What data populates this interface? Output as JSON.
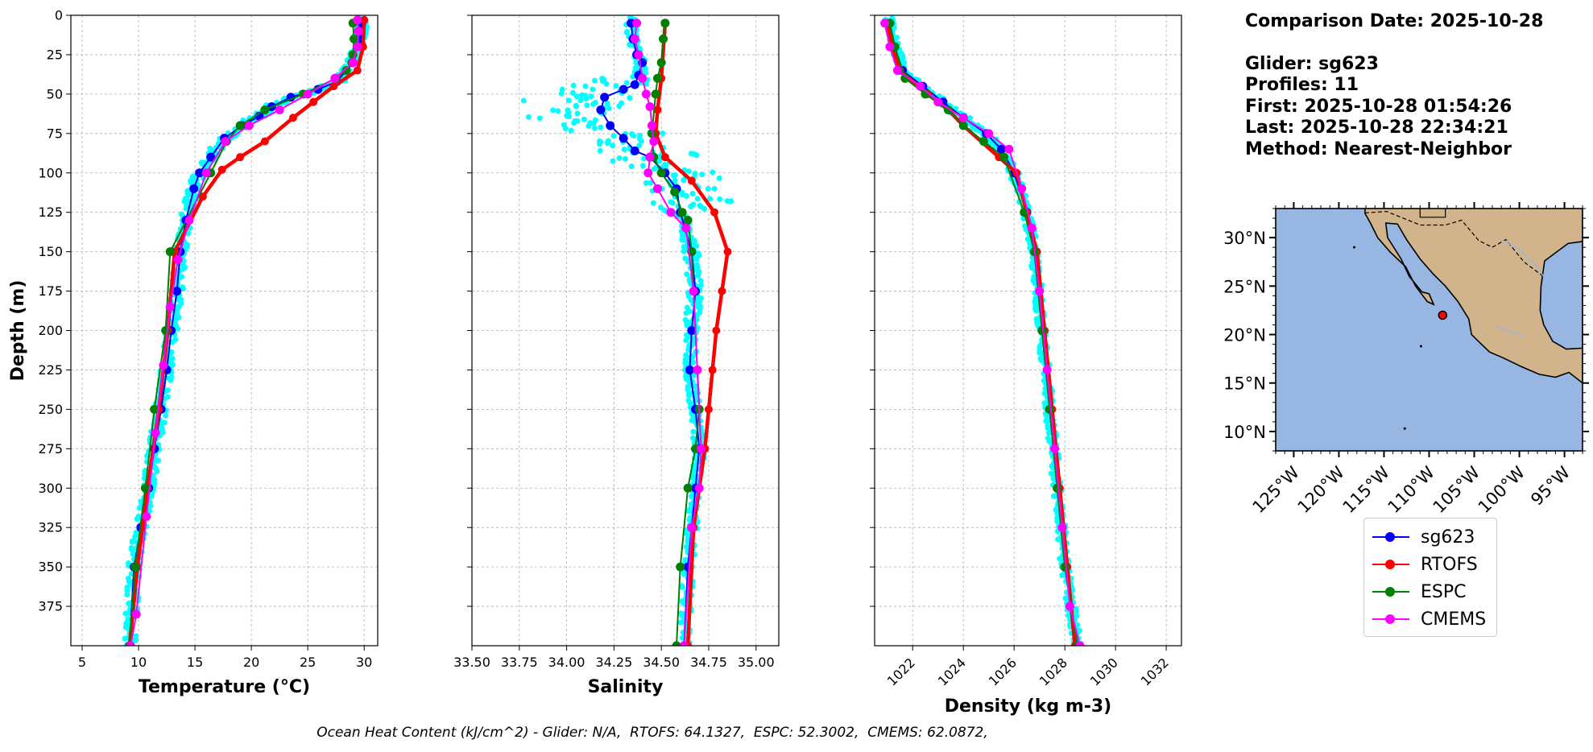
{
  "info": {
    "date_line": "Comparison Date: 2025-10-28",
    "glider_line": "Glider: sg623",
    "profiles_line": "Profiles: 11",
    "first_line": "First: 2025-10-28 01:54:26",
    "last_line": "Last: 2025-10-28 22:34:21",
    "method_line": "Method: Nearest-Neighbor"
  },
  "footer": "Ocean Heat Content (kJ/cm^2) - Glider: N/A,  RTOFS: 64.1327,  ESPC: 52.3002,  CMEMS: 62.0872,",
  "legend": [
    {
      "name": "sg623",
      "color": "#0000ff"
    },
    {
      "name": "RTOFS",
      "color": "#ff0000"
    },
    {
      "name": "ESPC",
      "color": "#008000"
    },
    {
      "name": "CMEMS",
      "color": "#ff00ff"
    }
  ],
  "chart_data": [
    {
      "type": "line",
      "xlabel": "Temperature (°C)",
      "ylabel": "Depth (m)",
      "xlim": [
        4,
        31.2
      ],
      "ylim": [
        400,
        0
      ],
      "xticks": [
        5,
        10,
        15,
        20,
        25,
        30
      ],
      "yticks": [
        0,
        25,
        50,
        75,
        100,
        125,
        150,
        175,
        200,
        225,
        250,
        275,
        300,
        325,
        350,
        375
      ],
      "grid": true,
      "series": [
        {
          "name": "sg623",
          "color": "#0000ff",
          "x": [
            29.8,
            29.6,
            29.0,
            27.6,
            25.9,
            23.5,
            21.8,
            20.7,
            19.2,
            17.6,
            16.4,
            15.4,
            14.9,
            14.2,
            13.7,
            13.4,
            12.9,
            12.5,
            12.0,
            11.4,
            10.9,
            10.2,
            9.6,
            9.2
          ],
          "y": [
            5,
            15,
            30,
            42,
            47,
            52,
            58,
            64,
            70,
            78,
            90,
            100,
            110,
            130,
            150,
            175,
            200,
            225,
            250,
            275,
            300,
            325,
            350,
            400
          ]
        },
        {
          "name": "RTOFS",
          "color": "#ff0000",
          "x": [
            30.0,
            29.9,
            29.4,
            27.3,
            25.5,
            23.7,
            21.2,
            19.0,
            17.4,
            15.7,
            13.2,
            12.6,
            11.8,
            10.8,
            9.9,
            9.2
          ],
          "y": [
            3,
            20,
            35,
            45,
            55,
            65,
            80,
            90,
            98,
            115,
            150,
            200,
            250,
            300,
            350,
            400
          ]
        },
        {
          "name": "ESPC",
          "color": "#008000",
          "x": [
            29.0,
            29.1,
            29.0,
            28.9,
            28.4,
            27.5,
            24.6,
            21.2,
            19.0,
            17.8,
            16.4,
            12.8,
            12.4,
            11.4,
            10.6,
            9.7,
            9.2
          ],
          "y": [
            5,
            15,
            25,
            30,
            35,
            40,
            50,
            60,
            70,
            80,
            100,
            150,
            200,
            250,
            300,
            350,
            400
          ]
        },
        {
          "name": "CMEMS",
          "color": "#ff00ff",
          "x": [
            29.4,
            29.5,
            29.4,
            29.0,
            27.4,
            25.0,
            22.5,
            19.8,
            17.7,
            16.0,
            14.5,
            13.5,
            12.8,
            12.2,
            11.5,
            10.7,
            9.8,
            9.3
          ],
          "y": [
            3,
            10,
            20,
            30,
            40,
            50,
            60,
            70,
            80,
            100,
            130,
            155,
            185,
            222,
            265,
            318,
            380,
            400
          ]
        }
      ]
    },
    {
      "type": "line",
      "xlabel": "Salinity",
      "xlim": [
        33.5,
        35.12
      ],
      "ylim": [
        400,
        0
      ],
      "xticks": [
        "33.50",
        "33.75",
        "34.00",
        "34.25",
        "34.50",
        "34.75",
        "35.00"
      ],
      "grid": true,
      "series": [
        {
          "name": "sg623",
          "color": "#0000ff",
          "x": [
            34.34,
            34.35,
            34.37,
            34.4,
            34.38,
            34.36,
            34.3,
            34.2,
            34.18,
            34.23,
            34.3,
            34.36,
            34.44,
            34.52,
            34.58,
            34.6,
            34.66,
            34.68,
            34.66,
            34.65,
            34.68,
            34.7,
            34.68,
            34.66,
            34.64,
            34.62
          ],
          "y": [
            5,
            15,
            25,
            30,
            38,
            44,
            47,
            52,
            60,
            70,
            78,
            86,
            90,
            100,
            110,
            125,
            150,
            175,
            200,
            225,
            250,
            275,
            300,
            325,
            350,
            400
          ]
        },
        {
          "name": "RTOFS",
          "color": "#ff0000",
          "x": [
            34.52,
            34.5,
            34.48,
            34.47,
            34.52,
            34.66,
            34.78,
            34.85,
            34.82,
            34.79,
            34.77,
            34.75,
            34.73,
            34.7,
            34.67,
            34.64
          ],
          "y": [
            5,
            40,
            60,
            75,
            90,
            105,
            125,
            150,
            175,
            200,
            225,
            250,
            275,
            300,
            325,
            400
          ]
        },
        {
          "name": "ESPC",
          "color": "#008000",
          "x": [
            34.52,
            34.51,
            34.5,
            34.48,
            34.47,
            34.45,
            34.46,
            34.5,
            34.57,
            34.61,
            34.64,
            34.66,
            34.7,
            34.68,
            34.64,
            34.6,
            34.58
          ],
          "y": [
            5,
            15,
            30,
            40,
            50,
            75,
            90,
            100,
            112,
            125,
            130,
            150,
            250,
            275,
            300,
            350,
            400
          ]
        },
        {
          "name": "CMEMS",
          "color": "#ff00ff",
          "x": [
            34.37,
            34.36,
            34.38,
            34.4,
            34.42,
            34.44,
            34.45,
            34.46,
            34.44,
            34.43,
            34.48,
            34.55,
            34.63,
            34.67,
            34.69,
            34.71,
            34.7,
            34.66,
            34.62
          ],
          "y": [
            5,
            15,
            25,
            40,
            50,
            58,
            70,
            80,
            90,
            100,
            110,
            125,
            135,
            175,
            225,
            275,
            300,
            325,
            400
          ]
        }
      ]
    },
    {
      "type": "line",
      "xlabel": "Density (kg m-3)",
      "xlim": [
        1020.5,
        1032.6
      ],
      "ylim": [
        400,
        0
      ],
      "xticks": [
        1022,
        1024,
        1026,
        1028,
        1030,
        1032
      ],
      "grid": true,
      "series": [
        {
          "name": "sg623",
          "color": "#0000ff",
          "x": [
            1021.1,
            1021.3,
            1021.6,
            1022.4,
            1023.2,
            1024.0,
            1024.9,
            1025.5,
            1026.0,
            1026.5,
            1026.8,
            1027.1,
            1027.4,
            1027.7,
            1028.0,
            1028.5
          ],
          "y": [
            5,
            20,
            35,
            45,
            55,
            65,
            75,
            85,
            100,
            125,
            150,
            200,
            250,
            300,
            350,
            400
          ]
        },
        {
          "name": "RTOFS",
          "color": "#ff0000",
          "x": [
            1021.0,
            1021.2,
            1021.5,
            1022.6,
            1023.4,
            1024.0,
            1025.4,
            1026.1,
            1026.5,
            1026.9,
            1027.2,
            1027.5,
            1027.8,
            1028.1,
            1028.4
          ],
          "y": [
            5,
            20,
            35,
            50,
            60,
            70,
            90,
            100,
            125,
            150,
            200,
            250,
            300,
            350,
            400
          ]
        },
        {
          "name": "ESPC",
          "color": "#008000",
          "x": [
            1021.1,
            1021.3,
            1021.7,
            1022.5,
            1023.4,
            1024.0,
            1024.8,
            1025.6,
            1026.4,
            1026.8,
            1027.1,
            1027.4,
            1027.7,
            1028.0,
            1028.5
          ],
          "y": [
            5,
            20,
            40,
            50,
            60,
            70,
            80,
            90,
            125,
            150,
            200,
            250,
            300,
            350,
            400
          ]
        },
        {
          "name": "CMEMS",
          "color": "#ff00ff",
          "x": [
            1020.9,
            1021.1,
            1021.4,
            1022.3,
            1023.0,
            1024.0,
            1025.0,
            1025.8,
            1026.3,
            1026.7,
            1027.0,
            1027.3,
            1027.6,
            1027.9,
            1028.2,
            1028.6
          ],
          "y": [
            5,
            20,
            35,
            45,
            55,
            65,
            75,
            85,
            110,
            135,
            175,
            225,
            275,
            325,
            375,
            400
          ]
        }
      ]
    },
    {
      "type": "map",
      "lon_range": [
        -127,
        -93
      ],
      "lat_range": [
        8,
        33
      ],
      "xticks": [
        "125°W",
        "120°W",
        "115°W",
        "110°W",
        "105°W",
        "100°W",
        "95°W"
      ],
      "yticks": [
        "30°N",
        "25°N",
        "20°N",
        "15°N",
        "10°N"
      ],
      "ocean_color": "#97b6e1",
      "land_color": "#d2b48c",
      "marker": {
        "lon": -108.5,
        "lat": 22.0,
        "color": "#ff0000"
      }
    }
  ]
}
